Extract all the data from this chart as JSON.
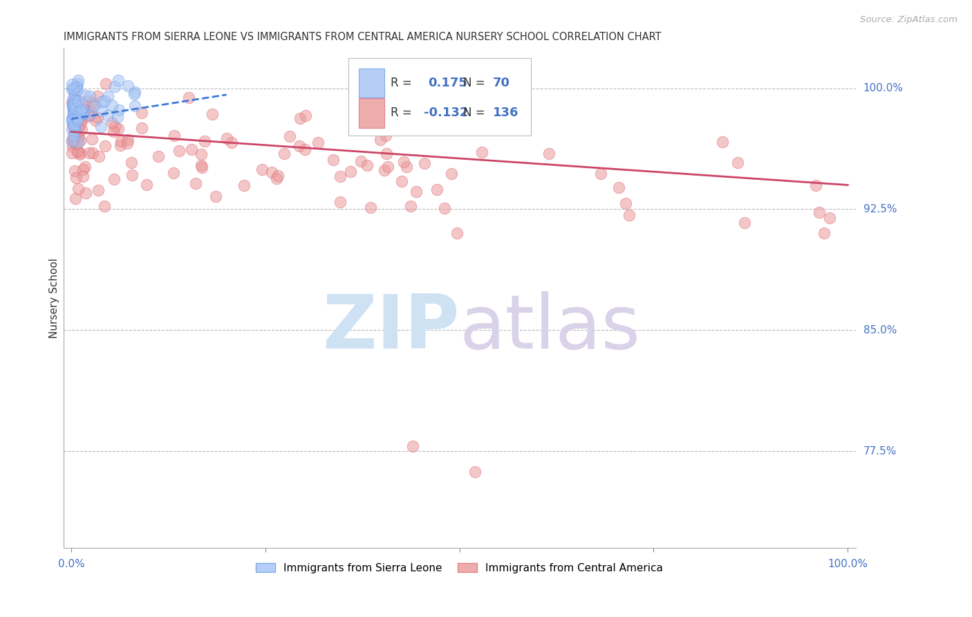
{
  "title": "IMMIGRANTS FROM SIERRA LEONE VS IMMIGRANTS FROM CENTRAL AMERICA NURSERY SCHOOL CORRELATION CHART",
  "source": "Source: ZipAtlas.com",
  "ylabel": "Nursery School",
  "ytick_labels": [
    "100.0%",
    "92.5%",
    "85.0%",
    "77.5%"
  ],
  "ytick_values": [
    1.0,
    0.925,
    0.85,
    0.775
  ],
  "ylim": [
    0.715,
    1.025
  ],
  "xlim": [
    -0.01,
    1.01
  ],
  "sierra_leone_color": "#a4c2f4",
  "sierra_leone_edge": "#6d9eeb",
  "central_america_color": "#ea9999",
  "central_america_edge": "#e06c7a",
  "sierra_leone_trend_color": "#3c78d8",
  "central_america_trend_color": "#cc4466",
  "grid_color": "#bbbbbb",
  "title_color": "#333333",
  "tick_color": "#4472c4",
  "watermark_zip_color": "#cfe2f3",
  "watermark_atlas_color": "#d9d2e9"
}
